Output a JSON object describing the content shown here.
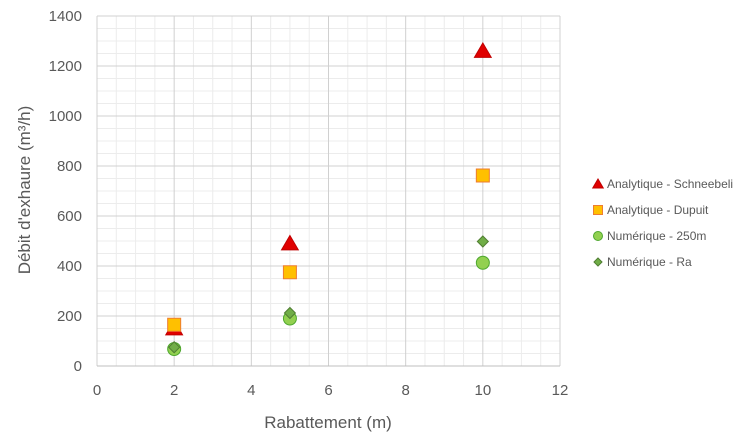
{
  "chart_data": {
    "type": "scatter",
    "title": "",
    "xlabel": "Rabattement (m)",
    "ylabel": "Débit d'exhaure (m³/h)",
    "xlim": [
      0,
      12
    ],
    "ylim": [
      0,
      1400
    ],
    "x_ticks": [
      "0",
      "2",
      "4",
      "6",
      "8",
      "10",
      "12"
    ],
    "y_ticks": [
      "0",
      "200",
      "400",
      "600",
      "800",
      "1000",
      "1200",
      "1400"
    ],
    "grid": true,
    "minor_grid": true,
    "legend_position": "right",
    "series": [
      {
        "name": "Analytique - Schneebeli",
        "marker": "triangle",
        "color": "#e00000",
        "border": "#c00000",
        "points": [
          {
            "x": 2,
            "y": 150
          },
          {
            "x": 5,
            "y": 490
          },
          {
            "x": 10,
            "y": 1260
          }
        ]
      },
      {
        "name": "Analytique - Dupuit",
        "marker": "square",
        "color": "#ffc000",
        "border": "#ed7d31",
        "points": [
          {
            "x": 2,
            "y": 165
          },
          {
            "x": 5,
            "y": 375
          },
          {
            "x": 10,
            "y": 762
          }
        ]
      },
      {
        "name": "Numérique - 250m",
        "marker": "circle",
        "color": "#92d050",
        "border": "#4ea72e",
        "points": [
          {
            "x": 2,
            "y": 68
          },
          {
            "x": 5,
            "y": 190
          },
          {
            "x": 10,
            "y": 413
          }
        ]
      },
      {
        "name": "Numérique - Ra",
        "marker": "diamond",
        "color": "#70ad47",
        "border": "#507e32",
        "points": [
          {
            "x": 2,
            "y": 75
          },
          {
            "x": 5,
            "y": 212
          },
          {
            "x": 10,
            "y": 498
          }
        ]
      }
    ]
  }
}
